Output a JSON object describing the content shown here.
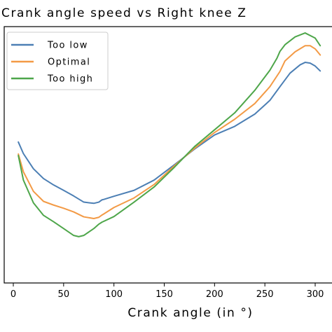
{
  "chart_data": {
    "type": "line",
    "title": "Crank angle speed vs Right knee Z",
    "xlabel": "Crank angle (in °)",
    "ylabel": "",
    "xlim": [
      -4,
      305
    ],
    "ylim": [
      0,
      1
    ],
    "xticks": [
      0,
      50,
      100,
      150,
      200,
      250,
      300
    ],
    "yticks": [],
    "grid": false,
    "legend_position": "top-left",
    "series": [
      {
        "name": "Too low",
        "color": "#4c7fb4",
        "x": [
          5,
          10,
          20,
          30,
          40,
          50,
          60,
          70,
          80,
          85,
          88,
          90,
          100,
          120,
          140,
          160,
          180,
          200,
          220,
          240,
          255,
          265,
          275,
          285,
          290,
          295,
          300,
          305
        ],
        "y": [
          0.552,
          0.505,
          0.443,
          0.403,
          0.377,
          0.355,
          0.332,
          0.307,
          0.302,
          0.307,
          0.316,
          0.318,
          0.331,
          0.355,
          0.397,
          0.459,
          0.523,
          0.581,
          0.616,
          0.666,
          0.722,
          0.778,
          0.833,
          0.867,
          0.877,
          0.874,
          0.862,
          0.842
        ]
      },
      {
        "name": "Optimal",
        "color": "#f39a45",
        "x": [
          5,
          10,
          20,
          30,
          40,
          50,
          60,
          70,
          80,
          85,
          88,
          90,
          100,
          120,
          140,
          160,
          180,
          200,
          220,
          240,
          255,
          265,
          270,
          280,
          290,
          295,
          300,
          305
        ],
        "y": [
          0.503,
          0.431,
          0.351,
          0.31,
          0.295,
          0.282,
          0.267,
          0.247,
          0.24,
          0.245,
          0.254,
          0.259,
          0.285,
          0.324,
          0.379,
          0.455,
          0.526,
          0.591,
          0.645,
          0.709,
          0.778,
          0.84,
          0.883,
          0.92,
          0.945,
          0.945,
          0.932,
          0.907
        ]
      },
      {
        "name": "Too high",
        "color": "#4ea64a",
        "x": [
          5,
          10,
          20,
          30,
          40,
          50,
          60,
          65,
          70,
          80,
          85,
          88,
          100,
          120,
          140,
          160,
          180,
          200,
          220,
          240,
          255,
          262,
          265,
          270,
          280,
          290,
          300,
          305
        ],
        "y": [
          0.497,
          0.397,
          0.304,
          0.253,
          0.227,
          0.199,
          0.171,
          0.166,
          0.171,
          0.199,
          0.217,
          0.225,
          0.248,
          0.307,
          0.369,
          0.449,
          0.533,
          0.602,
          0.671,
          0.763,
          0.845,
          0.894,
          0.922,
          0.949,
          0.981,
          0.997,
          0.976,
          0.945
        ]
      }
    ]
  }
}
